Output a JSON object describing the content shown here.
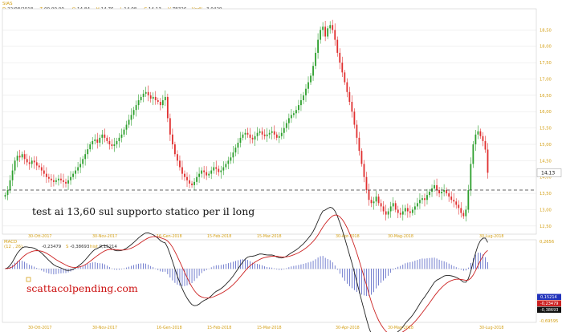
{
  "header": {
    "symbol": "SIAS",
    "fields": [
      {
        "k": "D",
        "v": "22/08/2018"
      },
      {
        "k": "T",
        "v": "00.00.00"
      },
      {
        "k": "O",
        "v": "14,84"
      },
      {
        "k": "H",
        "v": "14,76"
      },
      {
        "k": "L",
        "v": "14,08"
      },
      {
        "k": "C",
        "v": "14,13"
      },
      {
        "k": "V",
        "v": "78326"
      },
      {
        "k": "Var%",
        "v": "-3,9429"
      }
    ]
  },
  "colors": {
    "up": "#2ea02e",
    "down": "#e03030",
    "macd_line": "#222222",
    "signal_line": "#cc2222",
    "histogram": "#3b4bbb",
    "axis_text": "#d4a017",
    "grid": "#e4e4e4"
  },
  "chart_data": [
    {
      "type": "candlestick",
      "name": "price",
      "ylim": [
        12.3,
        19.0
      ],
      "y_ticks": [
        "12,50",
        "13,00",
        "13,50",
        "14,00",
        "14,50",
        "15,00",
        "15,50",
        "16,00",
        "16,50",
        "17,00",
        "17,50",
        "18,00",
        "18,50"
      ],
      "last_price_label": "14,13",
      "support_level": 13.6,
      "annotation": "test ai 13,60 sul supporto statico per il long",
      "x_labels": [
        "30-Ott-2017",
        "30-Nov-2017",
        "16-Gen-2018",
        "15-Feb-2018",
        "15-Mar-2018",
        "30-Apr-2018",
        "30-Mag-2018",
        "30-Lug-2018"
      ],
      "close": [
        13.45,
        13.6,
        13.9,
        14.2,
        14.5,
        14.65,
        14.6,
        14.7,
        14.55,
        14.45,
        14.4,
        14.5,
        14.45,
        14.35,
        14.3,
        14.2,
        14.1,
        14.0,
        13.95,
        13.9,
        13.85,
        13.9,
        13.95,
        13.9,
        13.85,
        13.8,
        13.9,
        14.0,
        14.1,
        14.2,
        14.3,
        14.4,
        14.55,
        14.7,
        14.85,
        15.0,
        15.1,
        15.15,
        15.05,
        15.2,
        15.3,
        15.2,
        15.1,
        15.0,
        14.95,
        15.0,
        15.1,
        15.2,
        15.3,
        15.45,
        15.6,
        15.75,
        15.9,
        16.05,
        16.2,
        16.35,
        16.45,
        16.55,
        16.6,
        16.5,
        16.4,
        16.45,
        16.35,
        16.3,
        16.2,
        16.35,
        16.45,
        15.8,
        15.3,
        15.0,
        14.7,
        14.5,
        14.3,
        14.1,
        14.0,
        13.9,
        13.8,
        13.75,
        13.85,
        14.0,
        14.1,
        14.2,
        14.15,
        14.05,
        14.1,
        14.2,
        14.3,
        14.25,
        14.15,
        14.2,
        14.3,
        14.4,
        14.5,
        14.6,
        14.75,
        14.9,
        15.05,
        15.2,
        15.3,
        15.35,
        15.3,
        15.2,
        15.15,
        15.25,
        15.35,
        15.4,
        15.3,
        15.25,
        15.3,
        15.35,
        15.4,
        15.3,
        15.2,
        15.25,
        15.35,
        15.5,
        15.65,
        15.8,
        15.9,
        15.95,
        16.05,
        16.2,
        16.35,
        16.5,
        16.7,
        16.9,
        17.1,
        17.4,
        17.8,
        18.2,
        18.5,
        18.6,
        18.3,
        18.55,
        18.65,
        18.5,
        18.2,
        17.8,
        17.5,
        17.2,
        16.9,
        16.6,
        16.3,
        16.0,
        15.6,
        15.2,
        14.8,
        14.4,
        14.0,
        13.6,
        13.3,
        13.2,
        13.25,
        13.4,
        13.2,
        13.1,
        12.95,
        12.85,
        12.95,
        13.1,
        13.2,
        13.0,
        12.9,
        12.85,
        12.95,
        13.05,
        12.95,
        12.9,
        13.0,
        13.1,
        13.2,
        13.3,
        13.35,
        13.3,
        13.45,
        13.55,
        13.65,
        13.75,
        13.6,
        13.5,
        13.55,
        13.6,
        13.5,
        13.4,
        13.3,
        13.25,
        13.15,
        13.05,
        12.9,
        12.8,
        13.0,
        13.6,
        14.4,
        15.0,
        15.3,
        15.4,
        15.25,
        15.1,
        14.84,
        14.13
      ]
    },
    {
      "type": "macd",
      "name": "MACD",
      "params": "(12 , 26)",
      "labels": [
        {
          "k": "MACD",
          "v": "-0,23479"
        },
        {
          "k": "S",
          "v": "-0,38693"
        },
        {
          "k": "hist",
          "v": "0,15214"
        }
      ],
      "y_ticks": [
        "0,2656",
        "-0,69595"
      ],
      "value_badges": [
        {
          "v": "0,15214",
          "color": "#2233bb"
        },
        {
          "v": "-0,23479",
          "color": "#cc2222"
        },
        {
          "v": "-0,38693",
          "color": "#111111"
        }
      ],
      "ylim": [
        -0.72,
        0.3
      ],
      "x_labels": [
        "30-Ott-2017",
        "30-Nov-2017",
        "16-Gen-2018",
        "15-Feb-2018",
        "15-Mar-2018",
        "30-Apr-2018",
        "30-Mag-2018",
        "30-Lug-2018"
      ]
    }
  ],
  "watermark": "scattacolpending.com"
}
